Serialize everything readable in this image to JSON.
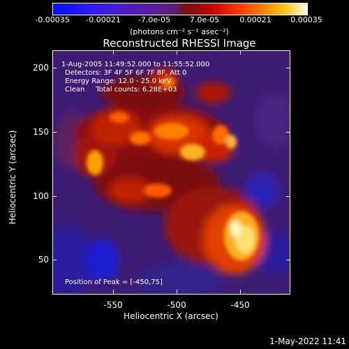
{
  "colorbar": {
    "ticks": [
      "-0.00035",
      "-0.00021",
      "-7.0e-05",
      "7.0e-05",
      "0.00021",
      "0.00035"
    ],
    "units": "(photons cm⁻² s⁻¹ asec⁻²)"
  },
  "title": "Reconstructed RHESSI Image",
  "info": {
    "time": "1-Aug-2005 11:49:52.000 to 11:55:52.000",
    "detectors": "Detectors: 3F 4F 5F 6F 7F 8F, Att 0",
    "energy": "Energy Range: 12.0 - 25.0 keV",
    "clean": "Clean     Total counts: 6.28E+03",
    "peak": "Position of Peak = [-450,75]"
  },
  "axes": {
    "xlabel": "Heliocentric X (arcsec)",
    "ylabel": "Heliocentric Y (arcsec)",
    "xticks": [
      "-550",
      "-500",
      "-450"
    ],
    "yticks": [
      "200",
      "150",
      "100",
      "50"
    ]
  },
  "timestamp": "1-May-2022 11:41"
}
